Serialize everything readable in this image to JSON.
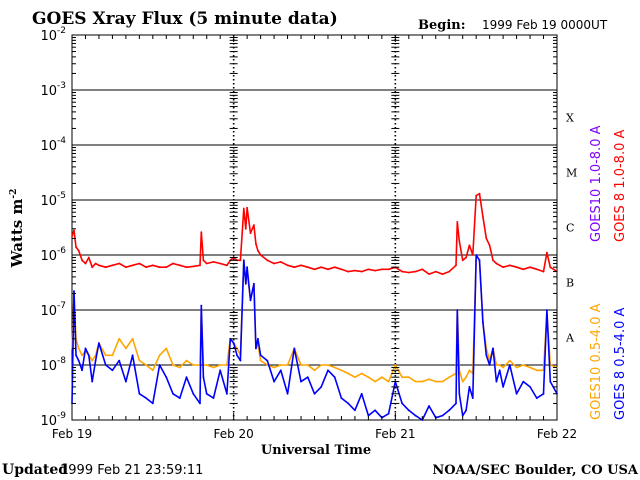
{
  "chart_data": {
    "type": "line",
    "title": "GOES Xray Flux (5 minute data)",
    "begin_label": "Begin:",
    "begin_value": "1999 Feb 19 0000UT",
    "ylabel_base": "Watts m",
    "ylabel_exp": "-2",
    "xlabel": "Universal Time",
    "yscale": "log",
    "ylim": [
      1e-09,
      0.01
    ],
    "xlim": [
      0,
      72
    ],
    "x_unit": "hours since 1999 Feb 19 0000UT",
    "x_ticks": [
      {
        "x": 0,
        "label": "Feb 19"
      },
      {
        "x": 24,
        "label": "Feb 20"
      },
      {
        "x": 48,
        "label": "Feb 21"
      },
      {
        "x": 72,
        "label": "Feb 22"
      }
    ],
    "y_ticks": [
      {
        "exp": -9,
        "label": "10",
        "sup": "-9"
      },
      {
        "exp": -8,
        "label": "10",
        "sup": "-8"
      },
      {
        "exp": -7,
        "label": "10",
        "sup": "-7"
      },
      {
        "exp": -6,
        "label": "10",
        "sup": "-6"
      },
      {
        "exp": -5,
        "label": "10",
        "sup": "-5"
      },
      {
        "exp": -4,
        "label": "10",
        "sup": "-4"
      },
      {
        "exp": -3,
        "label": "10",
        "sup": "-3"
      },
      {
        "exp": -2,
        "label": "10",
        "sup": "-2"
      }
    ],
    "flare_classes": [
      {
        "label": "X",
        "exp": -3.5
      },
      {
        "label": "M",
        "exp": -4.5
      },
      {
        "label": "C",
        "exp": -5.5
      },
      {
        "label": "B",
        "exp": -6.5
      },
      {
        "label": "A",
        "exp": -7.5
      }
    ],
    "grid": true,
    "legend_position": "right",
    "series": [
      {
        "name": "GOES 8 1.0-8.0 A",
        "color": "#ff0000",
        "x": [
          0,
          0.3,
          0.6,
          1,
          1.5,
          2,
          2.5,
          3,
          3.5,
          4,
          5,
          6,
          7,
          8,
          9,
          10,
          11,
          12,
          13,
          14,
          15,
          16,
          17,
          18,
          19,
          19.2,
          19.5,
          20,
          21,
          22,
          23,
          23.5,
          24,
          24.5,
          25,
          25.5,
          25.8,
          26,
          26.5,
          27,
          27.3,
          27.6,
          28,
          29,
          30,
          31,
          32,
          33,
          34,
          35,
          36,
          37,
          38,
          39,
          40,
          41,
          42,
          43,
          44,
          45,
          46,
          47,
          48,
          49,
          50,
          51,
          52,
          53,
          54,
          55,
          56,
          57,
          57.2,
          57.5,
          58,
          58.5,
          59,
          59.5,
          60,
          60.5,
          61,
          61.5,
          62,
          62.5,
          63,
          63.5,
          64,
          65,
          66,
          67,
          68,
          69,
          70,
          70.5,
          71,
          72
        ],
        "y": [
          2.2e-06,
          2.8e-06,
          1.4e-06,
          1.2e-06,
          8e-07,
          7e-07,
          9e-07,
          6e-07,
          7e-07,
          6.5e-07,
          6e-07,
          6.5e-07,
          7e-07,
          6e-07,
          6.5e-07,
          7e-07,
          6e-07,
          6.5e-07,
          6e-07,
          6e-07,
          7e-07,
          6.5e-07,
          6e-07,
          6.2e-07,
          6.5e-07,
          2.6e-06,
          8e-07,
          7e-07,
          7.5e-07,
          7e-07,
          6.5e-07,
          8e-07,
          9e-07,
          8e-07,
          8e-07,
          7e-06,
          3e-06,
          7.2e-06,
          2.5e-06,
          3.5e-06,
          1.6e-06,
          1.2e-06,
          1e-06,
          8e-07,
          7e-07,
          7.5e-07,
          6.5e-07,
          6e-07,
          6.5e-07,
          6e-07,
          5.5e-07,
          6e-07,
          5.5e-07,
          6e-07,
          5.5e-07,
          5e-07,
          5.2e-07,
          5e-07,
          5.5e-07,
          5.2e-07,
          5.5e-07,
          5.5e-07,
          6e-07,
          5e-07,
          4.8e-07,
          5e-07,
          5.5e-07,
          4.5e-07,
          5e-07,
          4.5e-07,
          5e-07,
          6.5e-07,
          4e-06,
          1.8e-06,
          8e-07,
          9e-07,
          1.5e-06,
          1e-06,
          1.2e-05,
          1.3e-05,
          5e-06,
          2e-06,
          1.5e-06,
          8e-07,
          7e-07,
          6.5e-07,
          6e-07,
          6.5e-07,
          6e-07,
          5.5e-07,
          6e-07,
          5.5e-07,
          5e-07,
          1.1e-06,
          6e-07,
          5e-07
        ]
      },
      {
        "name": "GOES10 1.0-8.0 A",
        "color": "#8000ff",
        "x": [],
        "y": []
      },
      {
        "name": "GOES 8 0.5-4.0 A",
        "color": "#0000ff",
        "x": [
          0,
          0.3,
          0.6,
          1,
          1.5,
          2,
          2.5,
          3,
          3.5,
          4,
          5,
          6,
          7,
          8,
          9,
          10,
          11,
          12,
          13,
          14,
          15,
          16,
          17,
          18,
          19,
          19.2,
          19.5,
          20,
          21,
          22,
          23,
          23.5,
          24,
          24.5,
          25,
          25.5,
          25.8,
          26,
          26.5,
          27,
          27.3,
          27.6,
          28,
          29,
          30,
          31,
          32,
          33,
          34,
          35,
          36,
          37,
          38,
          39,
          40,
          41,
          42,
          43,
          44,
          45,
          46,
          47,
          48,
          49,
          50,
          51,
          52,
          53,
          54,
          55,
          56,
          57,
          57.2,
          57.5,
          58,
          58.5,
          59,
          59.5,
          60,
          60.5,
          61,
          61.5,
          62,
          62.5,
          63,
          63.5,
          64,
          65,
          66,
          67,
          68,
          69,
          70,
          70.5,
          71,
          72
        ],
        "y": [
          2e-09,
          2.2e-07,
          1.5e-08,
          1.2e-08,
          8e-09,
          2e-08,
          1.5e-08,
          5e-09,
          1.2e-08,
          2.5e-08,
          1e-08,
          8e-09,
          1.2e-08,
          5e-09,
          1.5e-08,
          3e-09,
          2.5e-09,
          2e-09,
          1e-08,
          6e-09,
          3e-09,
          2.5e-09,
          6e-09,
          3e-09,
          2e-09,
          1.2e-07,
          6e-09,
          3e-09,
          2.5e-09,
          8e-09,
          3e-09,
          3e-08,
          2.5e-08,
          1.5e-08,
          1.2e-08,
          8e-07,
          3e-07,
          6e-07,
          1.5e-07,
          3e-07,
          2e-08,
          3e-08,
          1.5e-08,
          1.2e-08,
          5e-09,
          8e-09,
          3e-09,
          2e-08,
          5e-09,
          6e-09,
          3e-09,
          4e-09,
          8e-09,
          6e-09,
          2.5e-09,
          2e-09,
          1.5e-09,
          3e-09,
          1.2e-09,
          1.5e-09,
          1.1e-09,
          1.3e-09,
          5e-09,
          2e-09,
          1.5e-09,
          1.2e-09,
          1e-09,
          1.8e-09,
          1.1e-09,
          1.2e-09,
          1.5e-09,
          2e-09,
          1e-07,
          3e-09,
          1.2e-09,
          1.5e-09,
          4e-09,
          2.5e-09,
          1e-06,
          8e-07,
          6e-08,
          1.5e-08,
          1e-08,
          2e-08,
          5e-09,
          8e-09,
          4e-09,
          1e-08,
          3e-09,
          5e-09,
          4e-09,
          2.5e-09,
          3e-09,
          1e-07,
          5e-09,
          3e-09
        ]
      },
      {
        "name": "GOES10 0.5-4.0 A",
        "color": "#ffa500",
        "x": [
          0,
          0.3,
          0.6,
          1,
          1.5,
          2,
          2.5,
          3,
          3.5,
          4,
          5,
          6,
          7,
          8,
          9,
          10,
          11,
          12,
          13,
          14,
          15,
          16,
          17,
          18,
          19,
          19.2,
          19.5,
          20,
          21,
          22,
          23,
          23.5,
          24,
          24.5,
          25,
          25.5,
          25.8,
          26,
          26.5,
          27,
          27.3,
          27.6,
          28,
          29,
          30,
          31,
          32,
          33,
          34,
          35,
          36,
          37,
          38,
          39,
          40,
          41,
          42,
          43,
          44,
          45,
          46,
          47,
          48,
          49,
          50,
          51,
          52,
          53,
          54,
          55,
          56,
          57,
          57.2,
          57.5,
          58,
          58.5,
          59,
          59.5,
          60,
          60.5,
          61,
          61.5,
          62,
          62.5,
          63,
          63.5,
          64,
          65,
          66,
          67,
          68,
          69,
          70,
          70.5,
          71,
          72
        ],
        "y": [
          2e-08,
          2e-07,
          3e-08,
          2e-08,
          1.5e-08,
          1.8e-08,
          1.5e-08,
          1.2e-08,
          1.5e-08,
          2.5e-08,
          1.5e-08,
          1.5e-08,
          3e-08,
          2e-08,
          3e-08,
          1.2e-08,
          1e-08,
          8e-09,
          1.5e-08,
          2e-08,
          1e-08,
          9e-09,
          1.2e-08,
          1e-08,
          1e-08,
          1e-07,
          1e-08,
          1e-08,
          9e-09,
          1e-08,
          1e-08,
          3e-08,
          2.5e-08,
          2e-08,
          1.5e-08,
          8e-07,
          3e-07,
          5e-07,
          1.5e-07,
          3e-07,
          2e-08,
          2.5e-08,
          1.2e-08,
          1e-08,
          9e-09,
          1e-08,
          1e-08,
          2e-08,
          1e-08,
          1e-08,
          8e-09,
          1e-08,
          1e-08,
          9e-09,
          8e-09,
          7e-09,
          6e-09,
          7e-09,
          6e-09,
          5e-09,
          6e-09,
          5e-09,
          1e-08,
          6e-09,
          6e-09,
          5e-09,
          5e-09,
          5.5e-09,
          5e-09,
          5e-09,
          6e-09,
          7e-09,
          1e-07,
          8e-09,
          5e-09,
          6e-09,
          8e-09,
          7e-09,
          1e-06,
          8e-07,
          6e-08,
          2e-08,
          1.2e-08,
          2e-08,
          1e-08,
          1e-08,
          9e-09,
          1.2e-08,
          9e-09,
          1e-08,
          9e-09,
          8e-09,
          8e-09,
          9e-08,
          1e-08,
          9e-09
        ]
      }
    ]
  },
  "footer": {
    "updated_label": "Updated",
    "updated_value": "1999 Feb 21 23:59:11",
    "credit": "NOAA/SEC Boulder, CO USA"
  }
}
